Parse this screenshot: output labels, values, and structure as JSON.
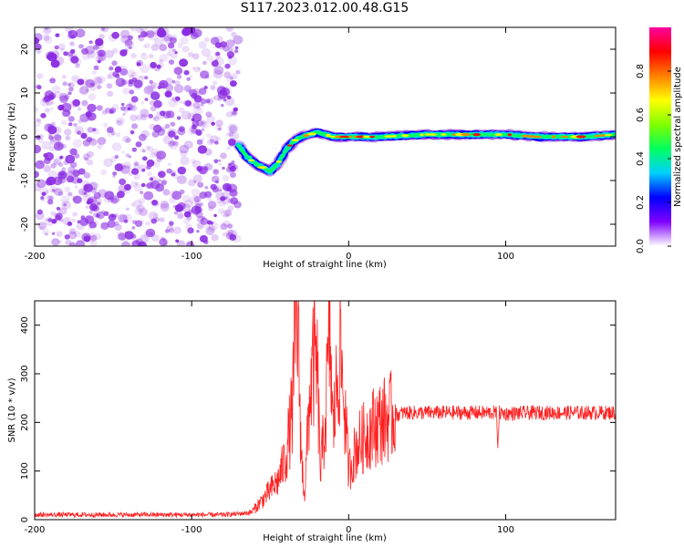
{
  "title": "S117.2023.012.00.48.G15",
  "colors": {
    "snr_line": "#ff2020",
    "noise": "#8a2be2",
    "colorbar_stops": [
      "#ffffff",
      "#8000ff",
      "#0000ff",
      "#00d0ff",
      "#00ff60",
      "#80ff00",
      "#ffff00",
      "#ff8000",
      "#ff0000",
      "#ff00a0"
    ]
  },
  "chart_data": [
    {
      "type": "heatmap",
      "title": "S117.2023.012.00.48.G15",
      "xlabel": "Height of straight line (km)",
      "ylabel": "Frequency (Hz)",
      "xlim": [
        -200,
        170
      ],
      "ylim": [
        -25,
        25
      ],
      "xticks": [
        "-200",
        "-100",
        "0",
        "100"
      ],
      "yticks": [
        "20",
        "10",
        "0",
        "-10",
        "-20"
      ],
      "colorbar": {
        "label": "Normalized spectral amplitude",
        "range": [
          0,
          1
        ],
        "ticks": [
          "0.0",
          "0.2",
          "0.4",
          "0.6",
          "0.8"
        ]
      },
      "noise_region_x": [
        -200,
        -70
      ],
      "signal_track": {
        "x": [
          -70,
          -65,
          -60,
          -55,
          -50,
          -45,
          -40,
          -35,
          -30,
          -25,
          -20,
          -15,
          -10,
          -5,
          0,
          20,
          50,
          80,
          100,
          120,
          150,
          170
        ],
        "freq": [
          -2,
          -4.5,
          -6,
          -7,
          -8,
          -6,
          -3,
          -1,
          0,
          0.5,
          1,
          0.5,
          0,
          0,
          0,
          0,
          0.5,
          0.5,
          0.5,
          0,
          0,
          0.5
        ]
      }
    },
    {
      "type": "line",
      "xlabel": "Height of straight line (km)",
      "ylabel": "SNR (10 * v/v)",
      "xlim": [
        -200,
        170
      ],
      "ylim": [
        0,
        450
      ],
      "xticks": [
        "-200",
        "-100",
        "0",
        "100"
      ],
      "yticks": [
        "0",
        "100",
        "200",
        "300",
        "400"
      ],
      "series": [
        {
          "x": [
            -200,
            -150,
            -100,
            -80,
            -70,
            -62,
            -55,
            -50,
            -45,
            -40,
            -36,
            -33,
            -30,
            -28,
            -25,
            -22,
            -20,
            -18,
            -15,
            -12,
            -10,
            -7,
            -5,
            -2,
            0,
            5,
            10,
            15,
            20,
            25,
            30,
            35,
            40,
            60,
            80,
            94,
            95,
            96,
            100,
            120,
            140,
            160,
            170
          ],
          "y": [
            10,
            10,
            10,
            10,
            12,
            15,
            40,
            60,
            80,
            130,
            220,
            450,
            120,
            50,
            250,
            330,
            300,
            100,
            200,
            390,
            180,
            300,
            340,
            200,
            100,
            150,
            170,
            190,
            200,
            210,
            215,
            220,
            220,
            220,
            220,
            220,
            160,
            220,
            218,
            220,
            220,
            220,
            220
          ]
        }
      ]
    }
  ]
}
